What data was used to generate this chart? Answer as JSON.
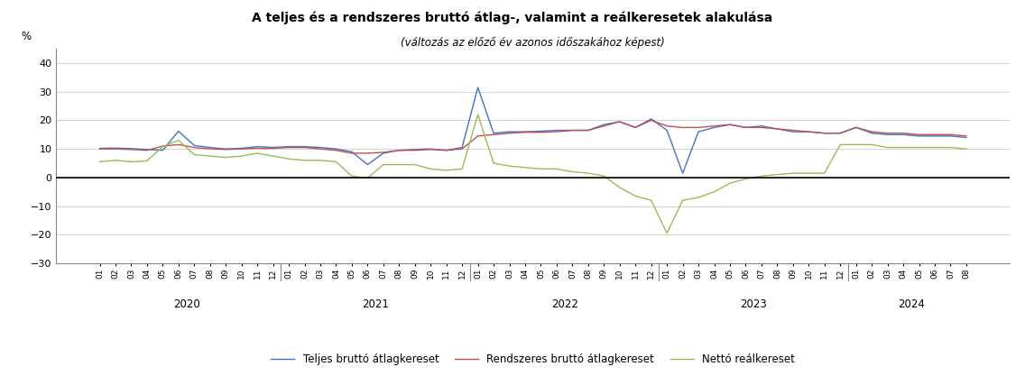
{
  "title": "A teljes és a rendszeres bruttó átlag-, valamint a reálkeresetek alakulása",
  "subtitle": "(változás az előző év azonos időszakához képest)",
  "ylabel": "%",
  "ylim": [
    -30,
    45
  ],
  "yticks": [
    -30,
    -20,
    -10,
    0,
    10,
    20,
    30,
    40
  ],
  "color_blue": "#4472C4",
  "color_red": "#C0504D",
  "color_green": "#9BBB59",
  "legend_blue": "Teljes bruttó átlagkereset",
  "legend_red": "Rendszeres bruttó átlagkereset",
  "legend_green": "Nettó reálkereset",
  "labels": [
    "01",
    "02",
    "03",
    "04",
    "05",
    "06",
    "07",
    "08",
    "09",
    "10",
    "11",
    "12",
    "01",
    "02",
    "03",
    "04",
    "05",
    "06",
    "07",
    "08",
    "09",
    "10",
    "11",
    "12",
    "01",
    "02",
    "03",
    "04",
    "05",
    "06",
    "07",
    "08",
    "09",
    "10",
    "11",
    "12",
    "01",
    "02",
    "03",
    "04",
    "05",
    "06",
    "07",
    "08",
    "09",
    "10",
    "11",
    "12",
    "01",
    "02",
    "03",
    "04",
    "05",
    "06",
    "07",
    "08"
  ],
  "year_labels": [
    "2020",
    "2021",
    "2022",
    "2023",
    "2024"
  ],
  "year_starts": [
    0,
    12,
    24,
    36,
    48
  ],
  "year_ends": [
    11,
    23,
    35,
    47,
    55
  ],
  "teljes": [
    10.2,
    10.3,
    10.1,
    9.8,
    9.5,
    16.2,
    11.2,
    10.5,
    10.0,
    10.2,
    10.8,
    10.5,
    10.8,
    10.8,
    10.5,
    10.0,
    9.0,
    4.5,
    8.5,
    9.5,
    9.8,
    10.0,
    9.5,
    10.5,
    31.5,
    15.5,
    16.0,
    16.0,
    16.2,
    16.5,
    16.5,
    16.5,
    18.5,
    19.5,
    17.5,
    20.5,
    16.5,
    1.5,
    16.0,
    17.5,
    18.5,
    17.5,
    18.0,
    17.0,
    16.0,
    16.0,
    15.5,
    15.5,
    17.5,
    15.5,
    15.0,
    15.0,
    14.5,
    14.5,
    14.5,
    14.0
  ],
  "rendszeres": [
    10.0,
    10.0,
    9.8,
    9.5,
    11.0,
    11.5,
    10.5,
    10.0,
    9.8,
    10.0,
    10.2,
    10.2,
    10.5,
    10.5,
    10.0,
    9.5,
    8.5,
    8.5,
    8.8,
    9.5,
    9.5,
    9.8,
    9.5,
    10.0,
    14.5,
    15.0,
    15.5,
    15.8,
    15.8,
    16.0,
    16.5,
    16.5,
    18.0,
    19.5,
    17.5,
    20.0,
    18.0,
    17.5,
    17.5,
    18.0,
    18.5,
    17.5,
    17.5,
    17.0,
    16.5,
    16.0,
    15.5,
    15.5,
    17.5,
    16.0,
    15.5,
    15.5,
    15.0,
    15.0,
    15.0,
    14.5
  ],
  "real": [
    5.5,
    6.0,
    5.5,
    5.8,
    10.8,
    13.0,
    8.0,
    7.5,
    7.0,
    7.5,
    8.5,
    7.5,
    6.5,
    6.0,
    6.0,
    5.5,
    0.5,
    -0.2,
    4.5,
    4.5,
    4.5,
    3.0,
    2.5,
    3.0,
    22.0,
    5.0,
    4.0,
    3.5,
    3.0,
    3.0,
    2.0,
    1.5,
    0.5,
    -3.5,
    -6.5,
    -8.0,
    -19.5,
    -8.0,
    -7.0,
    -5.0,
    -2.0,
    -0.5,
    0.5,
    1.0,
    1.5,
    1.5,
    1.5,
    11.5,
    11.5,
    11.5,
    10.5,
    10.5,
    10.5,
    10.5,
    10.5,
    10.0
  ]
}
